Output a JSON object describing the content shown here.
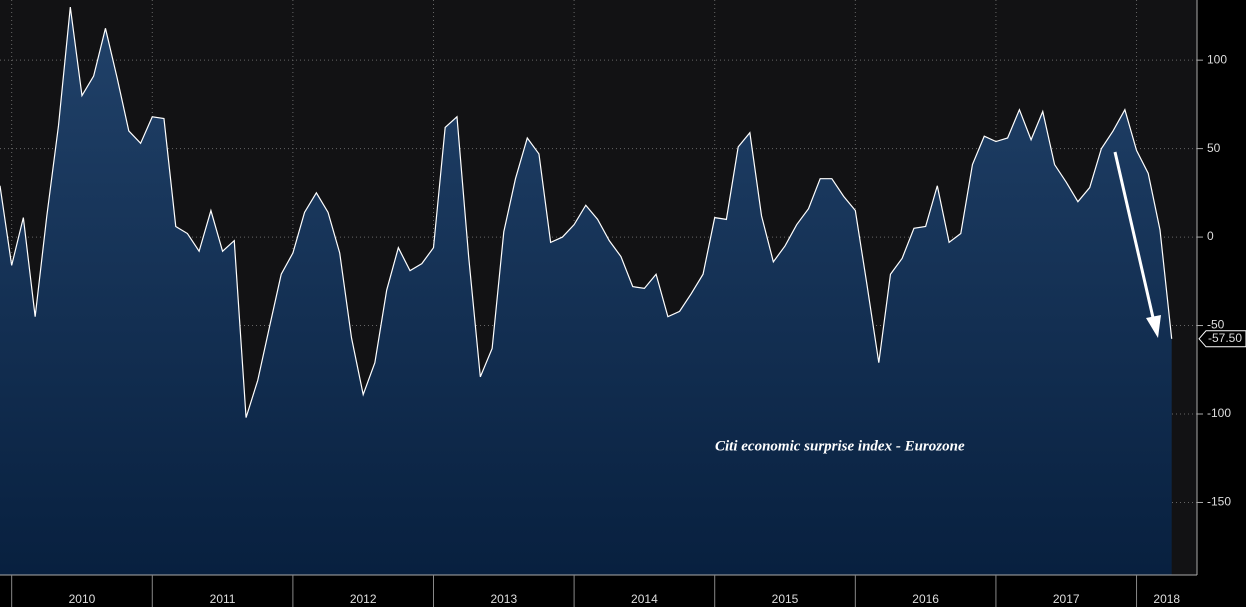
{
  "chart_data": {
    "type": "area",
    "annotation": "Citi economic surprise index - Eurozone",
    "x": [
      2009.917,
      2010.0,
      2010.083,
      2010.167,
      2010.25,
      2010.333,
      2010.417,
      2010.5,
      2010.583,
      2010.667,
      2010.75,
      2010.833,
      2010.917,
      2011.0,
      2011.083,
      2011.167,
      2011.25,
      2011.333,
      2011.417,
      2011.5,
      2011.583,
      2011.667,
      2011.75,
      2011.833,
      2011.917,
      2012.0,
      2012.083,
      2012.167,
      2012.25,
      2012.333,
      2012.417,
      2012.5,
      2012.583,
      2012.667,
      2012.75,
      2012.833,
      2012.917,
      2013.0,
      2013.083,
      2013.167,
      2013.25,
      2013.333,
      2013.417,
      2013.5,
      2013.583,
      2013.667,
      2013.75,
      2013.833,
      2013.917,
      2014.0,
      2014.083,
      2014.167,
      2014.25,
      2014.333,
      2014.417,
      2014.5,
      2014.583,
      2014.667,
      2014.75,
      2014.833,
      2014.917,
      2015.0,
      2015.083,
      2015.167,
      2015.25,
      2015.333,
      2015.417,
      2015.5,
      2015.583,
      2015.667,
      2015.75,
      2015.833,
      2015.917,
      2016.0,
      2016.083,
      2016.167,
      2016.25,
      2016.333,
      2016.417,
      2016.5,
      2016.583,
      2016.667,
      2016.75,
      2016.833,
      2016.917,
      2017.0,
      2017.083,
      2017.167,
      2017.25,
      2017.333,
      2017.417,
      2017.5,
      2017.583,
      2017.667,
      2017.75,
      2017.833,
      2017.917,
      2018.0,
      2018.083,
      2018.167,
      2018.25
    ],
    "series": [
      {
        "name": "Citi economic surprise index - Eurozone",
        "color": "#ffffff",
        "values": [
          29,
          -16,
          11,
          -45,
          12,
          63,
          130,
          80,
          91,
          118,
          90,
          60,
          53,
          68,
          67,
          6,
          2,
          -8,
          15,
          -8,
          -2,
          -102,
          -81,
          -51,
          -21,
          -9,
          14,
          25,
          14,
          -9,
          -57,
          -89,
          -71,
          -30,
          -6,
          -19,
          -15,
          -6,
          62,
          68,
          -11,
          -79,
          -63,
          3,
          33,
          56,
          47,
          -3,
          0,
          7,
          18,
          10,
          -2,
          -11,
          -28,
          -29,
          -21,
          -45,
          -42,
          -32,
          -21,
          11,
          10,
          51,
          59,
          12,
          -14,
          -5,
          7,
          16,
          33,
          33,
          23,
          15,
          -27,
          -71,
          -21,
          -12,
          5,
          6,
          29,
          -3,
          2,
          41,
          57,
          54,
          56,
          72,
          55,
          71,
          41,
          31,
          20,
          28,
          50,
          60,
          72,
          49,
          36,
          4,
          -57.5
        ],
        "value_labels": [
          null,
          null,
          null,
          null,
          null,
          null,
          null,
          null,
          null,
          null,
          null,
          null,
          null,
          null,
          null,
          null,
          null,
          null,
          null,
          null,
          null,
          null,
          null,
          null,
          null,
          null,
          null,
          null,
          null,
          null,
          null,
          null,
          null,
          null,
          null,
          null,
          null,
          null,
          null,
          null,
          null,
          null,
          null,
          null,
          null,
          null,
          null,
          null,
          null,
          null,
          null,
          null,
          null,
          null,
          null,
          null,
          null,
          null,
          null,
          null,
          null,
          null,
          null,
          null,
          null,
          null,
          null,
          null,
          null,
          null,
          null,
          null,
          null,
          null,
          null,
          null,
          null,
          null,
          null,
          null,
          null,
          null,
          null,
          null,
          null,
          null,
          null,
          null,
          null,
          null,
          null,
          null,
          null,
          null,
          null,
          null,
          null,
          null,
          null,
          null,
          "-57.50"
        ]
      }
    ],
    "xlim": [
      2009.917,
      2018.43
    ],
    "xticks": [
      2010,
      2011,
      2012,
      2013,
      2014,
      2015,
      2016,
      2017,
      2018
    ],
    "ylim": [
      -191,
      134
    ],
    "yticks": [
      100,
      50,
      0,
      -50,
      -100,
      -150
    ],
    "grid": true
  }
}
